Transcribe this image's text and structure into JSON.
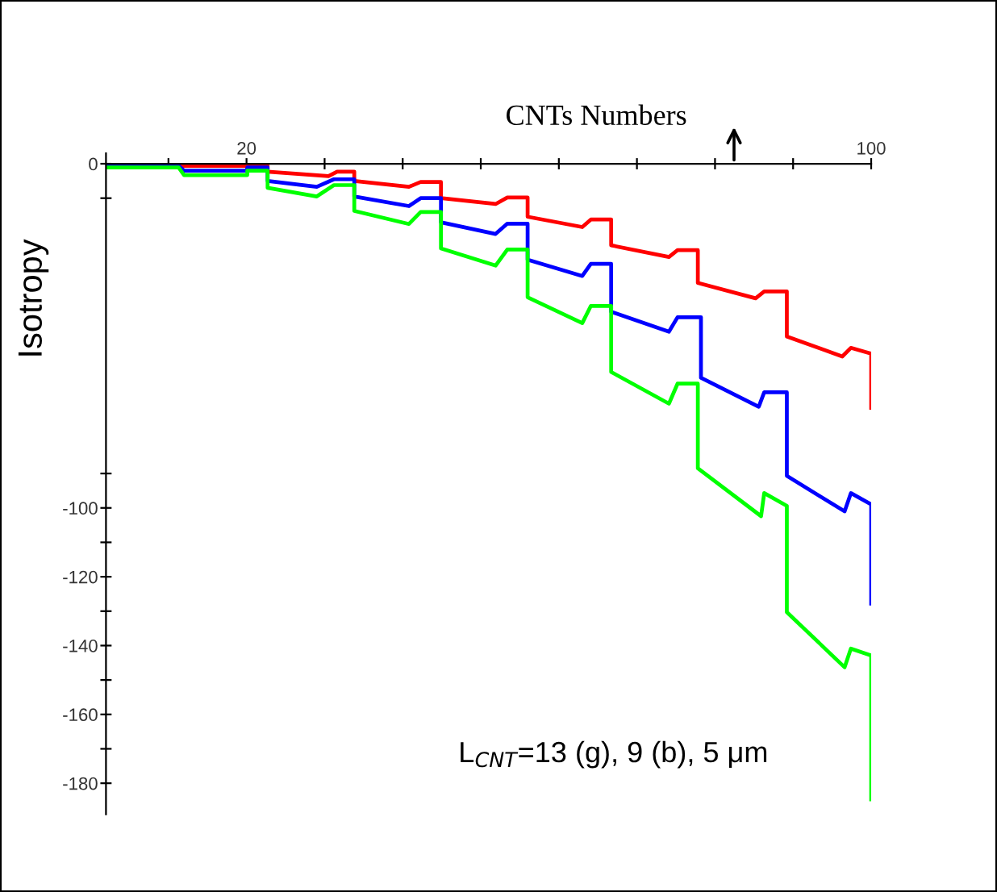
{
  "chart_data": {
    "type": "line",
    "xlabel": "CNTs Numbers",
    "ylabel": "Isotropy",
    "annotations": [
      "L$_{CNT}$=13 (g), 9 (b), 5 μm"
    ],
    "xlim": [
      2,
      100
    ],
    "ylim": [
      -189,
      3
    ],
    "xticks": [
      {
        "value": 10,
        "label": null
      },
      20,
      {
        "value": 30,
        "label": null
      },
      {
        "value": 40,
        "label": null
      },
      {
        "value": 50,
        "label": null
      },
      {
        "value": 60,
        "label": null
      },
      {
        "value": 70,
        "label": null
      },
      {
        "value": 80,
        "label": null
      },
      {
        "value": 90,
        "label": null
      },
      100
    ],
    "yticks": [
      0,
      {
        "value": -10,
        "label": null
      },
      {
        "value": -90,
        "label": null
      },
      -100,
      {
        "value": -110,
        "label": null
      },
      -120,
      {
        "value": -130,
        "label": null
      },
      -140,
      {
        "value": -150,
        "label": null
      },
      -160,
      {
        "value": -170,
        "label": null
      },
      -180
    ],
    "grid": false,
    "legend": false,
    "marker": "none",
    "line_style": "solid",
    "series": [
      {
        "color": "#ff0000",
        "x": [
          2,
          22.7,
          22.7,
          30.5,
          31.6,
          33.8,
          33.8,
          40.8,
          42.3,
          44.9,
          44.9,
          51.9,
          53.4,
          56,
          56,
          63,
          64.1,
          66.7,
          66.7,
          74.1,
          75.2,
          77.8,
          77.8,
          85.2,
          86.3,
          89.2,
          89.2,
          96.3,
          97.4,
          100,
          100
        ],
        "values": [
          -0.6,
          -0.6,
          -2.3,
          -3.6,
          -2.3,
          -2.3,
          -5,
          -6.7,
          -5.3,
          -5.3,
          -10,
          -11.7,
          -9.8,
          -9.8,
          -15.4,
          -18.4,
          -16.2,
          -16.2,
          -23.7,
          -27.1,
          -25.1,
          -25.1,
          -34.6,
          -39.1,
          -37.1,
          -37.1,
          -50.2,
          -56,
          -53.5,
          -55.2,
          -70.9
        ]
      },
      {
        "color": "#0000ff",
        "x": [
          2,
          11.3,
          12,
          20.1,
          20.1,
          22.7,
          22.7,
          29,
          31.2,
          33.8,
          33.8,
          40.8,
          42.3,
          44.9,
          44.9,
          51.9,
          53.4,
          56,
          56,
          63,
          64.1,
          66.7,
          66.7,
          74.1,
          75.2,
          78.2,
          78.2,
          85.6,
          86.3,
          89.2,
          89.2,
          96.6,
          97.4,
          100,
          100
        ],
        "values": [
          -0.6,
          -0.6,
          -2,
          -2,
          -1.1,
          -1.1,
          -5,
          -6.7,
          -4.5,
          -4.5,
          -9.5,
          -12.3,
          -10,
          -10,
          -17,
          -20.4,
          -17.4,
          -17.4,
          -27.9,
          -32.6,
          -29.1,
          -29.1,
          -43,
          -48.8,
          -44.6,
          -44.6,
          -62.2,
          -70.6,
          -66.4,
          -66.4,
          -90.7,
          -101,
          -95.7,
          -99,
          -127.8
        ]
      },
      {
        "color": "#00ff00",
        "x": [
          2,
          11.3,
          12,
          20.1,
          20.1,
          22.7,
          22.7,
          29,
          31.2,
          33.8,
          33.8,
          40.8,
          42.3,
          44.9,
          44.9,
          51.9,
          53.4,
          56,
          56,
          63,
          64.1,
          66.7,
          66.7,
          74.1,
          75.2,
          77.8,
          77.8,
          85.9,
          86.3,
          89.2,
          89.2,
          96.6,
          97.4,
          100,
          100
        ],
        "values": [
          -1.1,
          -1.1,
          -3.3,
          -3.3,
          -2,
          -2,
          -7,
          -9.5,
          -6.2,
          -6.2,
          -13.7,
          -17.5,
          -14,
          -14,
          -24.6,
          -29.6,
          -24.9,
          -24.9,
          -38.8,
          -46.3,
          -41.3,
          -41.3,
          -60.5,
          -69.7,
          -63.9,
          -63.9,
          -88.5,
          -102.4,
          -95.7,
          -99.4,
          -130.3,
          -146.3,
          -140.9,
          -142.9,
          -184.7
        ]
      }
    ]
  }
}
